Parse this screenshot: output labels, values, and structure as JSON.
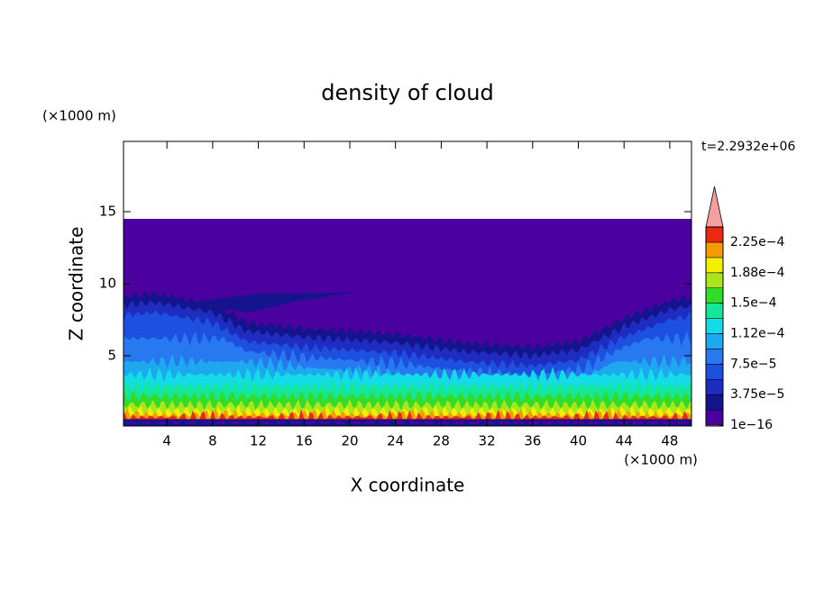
{
  "chart_data": {
    "type": "contour",
    "title": "density of cloud",
    "x_label": "X coordinate",
    "y_label": "Z coordinate",
    "x_unit": "(×1000 m)",
    "y_unit": "(×1000 m)",
    "annotation": "t=2.2932e+06",
    "xlim": [
      0.2,
      49.9
    ],
    "ylim": [
      0.125,
      19.875
    ],
    "xticks": [
      4,
      8,
      12,
      16,
      20,
      24,
      28,
      32,
      36,
      40,
      44,
      48
    ],
    "yticks": [
      5,
      10,
      15
    ],
    "colorbar": {
      "levels": [
        1e-16,
        1.875e-05,
        3.75e-05,
        5.625e-05,
        7.5e-05,
        9.375e-05,
        0.0001125,
        0.00013125,
        0.00015,
        0.00016875,
        0.0001875,
        0.00020625,
        0.000225,
        0.00024375
      ],
      "colors": [
        "#4b00a0",
        "#14148c",
        "#1e2cc0",
        "#1e50e0",
        "#2878f0",
        "#1ea8f0",
        "#14dce6",
        "#14e69a",
        "#32dc28",
        "#aae61e",
        "#f0f000",
        "#f59a00",
        "#ec2814"
      ],
      "overflow_color": "#f4a0a0",
      "ticks": [
        {
          "value": 1e-16,
          "label": "1e−16"
        },
        {
          "value": 3.75e-05,
          "label": "3.75e−5"
        },
        {
          "value": 7.5e-05,
          "label": "7.5e−5"
        },
        {
          "value": 0.0001125,
          "label": "1.12e−4"
        },
        {
          "value": 0.00015,
          "label": "1.5e−4"
        },
        {
          "value": 0.0001875,
          "label": "1.88e−4"
        },
        {
          "value": 0.000225,
          "label": "2.25e−4"
        }
      ]
    }
  }
}
